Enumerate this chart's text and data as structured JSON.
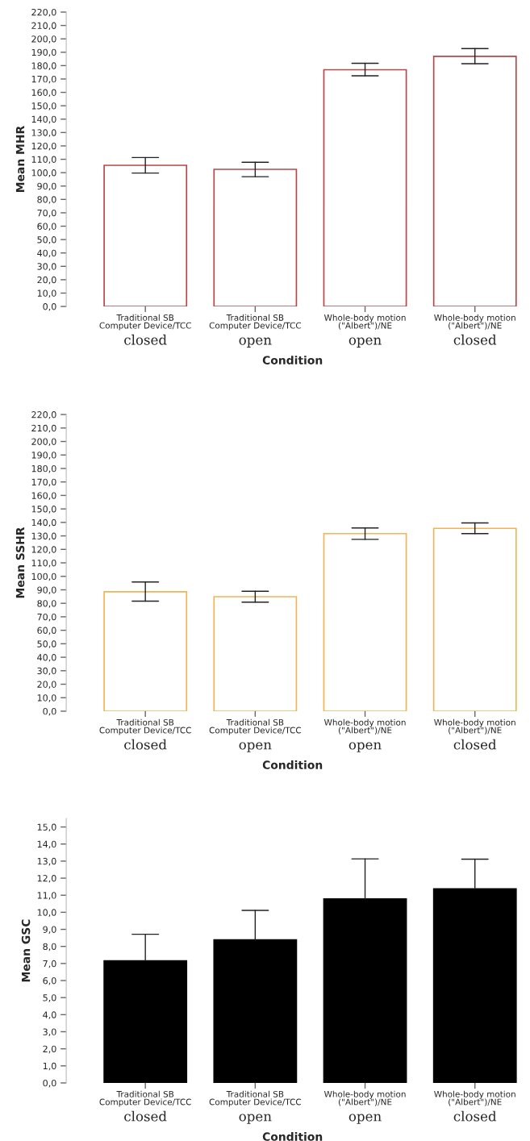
{
  "chart_data": [
    {
      "type": "bar",
      "ylabel": "Mean MHR",
      "xlabel": "Condition",
      "categories": [
        "Traditional SB\nComputer Device/TCC\nclosed",
        "Traditional SB\nComputer Device/TCC\nopen",
        "Whole-body motion\n(\"Albert\")/NE\nopen",
        "Whole-body motion\n(\"Albert\")/NE\nclosed"
      ],
      "series": [
        {
          "color": "#b5474a",
          "values": [
            105.5,
            102.5,
            176.9,
            186.9
          ],
          "errors": [
            [
              99.7,
              111.3
            ],
            [
              97.0,
              107.8
            ],
            [
              172.4,
              181.7
            ],
            [
              181.4,
              192.7
            ]
          ]
        }
      ],
      "ylim": [
        0,
        220
      ],
      "yticks": [
        {
          "value": 0,
          "label": "0,0"
        },
        {
          "value": 10,
          "label": "10,0"
        },
        {
          "value": 20,
          "label": "20,0"
        },
        {
          "value": 30,
          "label": "30,0"
        },
        {
          "value": 40,
          "label": "40,0"
        },
        {
          "value": 50,
          "label": "50,0"
        },
        {
          "value": 60,
          "label": "60,0"
        },
        {
          "value": 70,
          "label": "70,0"
        },
        {
          "value": 80,
          "label": "80,0"
        },
        {
          "value": 90,
          "label": "90,0"
        },
        {
          "value": 100,
          "label": "100,0"
        },
        {
          "value": 110,
          "label": "110,0"
        },
        {
          "value": 120,
          "label": "120,0"
        },
        {
          "value": 130,
          "label": "130,0"
        },
        {
          "value": 140,
          "label": "140,0"
        },
        {
          "value": 150,
          "label": "150,0"
        },
        {
          "value": 160,
          "label": "160,0"
        },
        {
          "value": 170,
          "label": "170,0"
        },
        {
          "value": 180,
          "label": "180,0"
        },
        {
          "value": 190,
          "label": "190,0"
        },
        {
          "value": 200,
          "label": "200,0"
        },
        {
          "value": 210,
          "label": "210,0"
        },
        {
          "value": 220,
          "label": "220,0"
        }
      ]
    },
    {
      "type": "bar",
      "ylabel": "Mean SSHR",
      "xlabel": "Condition",
      "categories": [
        "Traditional SB\nComputer Device/TCC\nclosed",
        "Traditional SB\nComputer Device/TCC\nopen",
        "Whole-body motion\n(\"Albert\")/NE\nopen",
        "Whole-body motion\n(\"Albert\")/NE\nclosed"
      ],
      "series": [
        {
          "color": "#f0b458",
          "values": [
            88.6,
            84.9,
            131.7,
            135.6
          ],
          "errors": [
            [
              81.6,
              95.8
            ],
            [
              80.9,
              88.9
            ],
            [
              127.4,
              135.9
            ],
            [
              131.7,
              139.6
            ]
          ]
        }
      ],
      "ylim": [
        0,
        220
      ],
      "yticks": [
        {
          "value": 0,
          "label": "0,0"
        },
        {
          "value": 10,
          "label": "10,0"
        },
        {
          "value": 20,
          "label": "20,0"
        },
        {
          "value": 30,
          "label": "30,0"
        },
        {
          "value": 40,
          "label": "40,0"
        },
        {
          "value": 50,
          "label": "50,0"
        },
        {
          "value": 60,
          "label": "60,0"
        },
        {
          "value": 70,
          "label": "70,0"
        },
        {
          "value": 80,
          "label": "80,0"
        },
        {
          "value": 90,
          "label": "90,0"
        },
        {
          "value": 100,
          "label": "100,0"
        },
        {
          "value": 110,
          "label": "110,0"
        },
        {
          "value": 120,
          "label": "120,0"
        },
        {
          "value": 130,
          "label": "130,0"
        },
        {
          "value": 140,
          "label": "140,0"
        },
        {
          "value": 150,
          "label": "150,0"
        },
        {
          "value": 160,
          "label": "160,0"
        },
        {
          "value": 170,
          "label": "170,0"
        },
        {
          "value": 180,
          "label": "180,0"
        },
        {
          "value": 190,
          "label": "190,0"
        },
        {
          "value": 200,
          "label": "200,0"
        },
        {
          "value": 210,
          "label": "210,0"
        },
        {
          "value": 220,
          "label": "220,0"
        }
      ]
    },
    {
      "type": "bar",
      "ylabel": "Mean GSC",
      "xlabel": "Condition",
      "categories": [
        "Traditional SB\nComputer Device/TCC\nclosed",
        "Traditional SB\nComputer Device/TCC\nopen",
        "Whole-body motion\n(\"Albert\")/NE\nopen",
        "Whole-body motion\n(\"Albert\")/NE\nclosed"
      ],
      "series": [
        {
          "color": "#000000",
          "values": [
            7.16,
            8.38,
            10.78,
            11.37
          ],
          "errors": [
            [
              7.16,
              8.71
            ],
            [
              8.38,
              10.11
            ],
            [
              10.78,
              13.13
            ],
            [
              11.37,
              13.11
            ]
          ]
        }
      ],
      "ylim": [
        0,
        15.5
      ],
      "yticks": [
        {
          "value": 0,
          "label": "0,0"
        },
        {
          "value": 1,
          "label": "1,0"
        },
        {
          "value": 2,
          "label": "2,0"
        },
        {
          "value": 3,
          "label": "3,0"
        },
        {
          "value": 4,
          "label": "4,0"
        },
        {
          "value": 5,
          "label": "5,0"
        },
        {
          "value": 6,
          "label": "6,0"
        },
        {
          "value": 7,
          "label": "7,0"
        },
        {
          "value": 8,
          "label": "8,0"
        },
        {
          "value": 9,
          "label": "9,0"
        },
        {
          "value": 10,
          "label": "10,0"
        },
        {
          "value": 11,
          "label": "11,0"
        },
        {
          "value": 12,
          "label": "12,0"
        },
        {
          "value": 13,
          "label": "13,0"
        },
        {
          "value": 14,
          "label": "14,0"
        },
        {
          "value": 15,
          "label": "15,0"
        }
      ]
    }
  ]
}
